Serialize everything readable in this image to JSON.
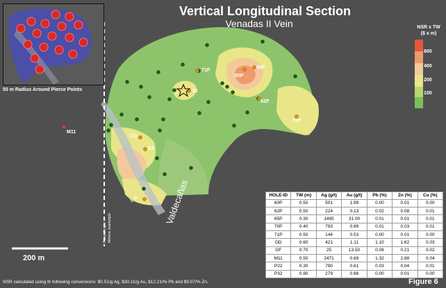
{
  "title": "Vertical Longitudinal Section",
  "subtitle": "Venadas II Vein",
  "inset_caption": "50 m Radius Around Pierce Points",
  "legend": {
    "title_line1": "NSR x TW",
    "title_line2": "($ x m)",
    "labels": [
      "800",
      "400",
      "200",
      "100"
    ],
    "colors": [
      "#e3573b",
      "#ef9a6c",
      "#f3c99c",
      "#e8e688",
      "#b4d86d",
      "#78c058"
    ]
  },
  "map_labels": {
    "p71": "71P",
    "p65": "65P",
    "p60": "60P",
    "p32": "32",
    "p62": "62P",
    "p70": "70P",
    "gd": "GD",
    "gf": "GF",
    "p22": "P",
    "m11": "M11",
    "valdecanas": "Valdecañas",
    "fault_line1": "Fasesito por",
    "fault_line2": "Minera Juanicipio"
  },
  "scale_label": "200 m",
  "footnote": "NSR calculated using th following conversions: $0.51/g Ag, $30.11/g Au,  $12.21/% Pb and $9.07/% Zn.",
  "figure_label": "Figure 6",
  "table": {
    "headers": [
      "HOLE-ID",
      "TW (m)",
      "Ag (g/t)",
      "Au (g/t)",
      "Pb (%)",
      "Zn (%)",
      "Cu (%)"
    ],
    "rows": [
      [
        "60P",
        "0.50",
        "501",
        "1.99",
        "0.00",
        "0.01",
        "0.00"
      ],
      [
        "62P",
        "0.50",
        "224",
        "0.13",
        "0.02",
        "0.08",
        "0.01"
      ],
      [
        "65P",
        "0.30",
        "1495",
        "31.00",
        "0.01",
        "0.01",
        "0.01"
      ],
      [
        "70P",
        "0.40",
        "793",
        "0.89",
        "0.01",
        "0.03",
        "0.01"
      ],
      [
        "71P",
        "0.50",
        "144",
        "0.53",
        "0.00",
        "0.01",
        "0.00"
      ],
      [
        "GD",
        "0.60",
        "421",
        "1.11",
        "1.10",
        "1.62",
        "0.03"
      ],
      [
        "GF",
        "0.70",
        "25",
        "13.50",
        "0.08",
        "0.21",
        "0.02"
      ],
      [
        "M11",
        "0.50",
        "2471",
        "0.69",
        "1.32",
        "2.88",
        "0.04"
      ],
      [
        "P22",
        "0.30",
        "790",
        "0.61",
        "0.03",
        "0.04",
        "0.01"
      ],
      [
        "P32",
        "0.90",
        "279",
        "0.66",
        "0.00",
        "0.01",
        "0.00"
      ]
    ]
  }
}
